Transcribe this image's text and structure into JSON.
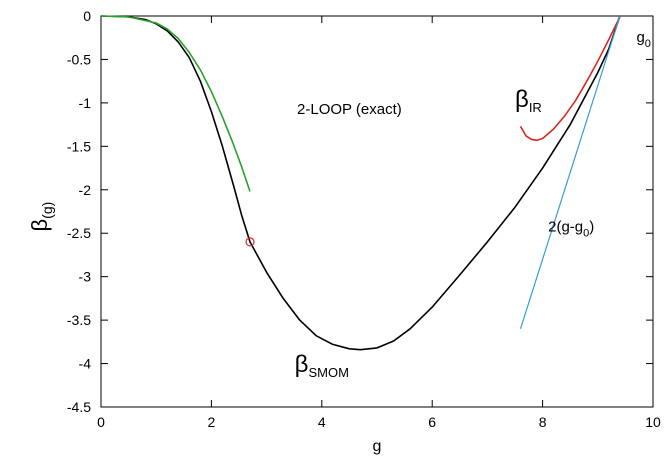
{
  "chart_data": {
    "type": "line",
    "xlabel": "g",
    "ylabel": "β",
    "ylabel_sub": "(g)",
    "xlim": [
      0,
      10
    ],
    "ylim": [
      -4.5,
      0
    ],
    "xticks": [
      0,
      2,
      4,
      6,
      8,
      10
    ],
    "yticks": [
      0,
      -0.5,
      -1,
      -1.5,
      -2,
      -2.5,
      -3,
      -3.5,
      -4,
      -4.5
    ],
    "grid": false,
    "series": [
      {
        "key": "smom",
        "color": "#000000",
        "points": [
          [
            0,
            0
          ],
          [
            0.5,
            -0.01
          ],
          [
            0.8,
            -0.04
          ],
          [
            1.0,
            -0.09
          ],
          [
            1.2,
            -0.17
          ],
          [
            1.4,
            -0.3
          ],
          [
            1.6,
            -0.48
          ],
          [
            1.8,
            -0.75
          ],
          [
            2.0,
            -1.1
          ],
          [
            2.2,
            -1.5
          ],
          [
            2.4,
            -1.95
          ],
          [
            2.55,
            -2.3
          ],
          [
            2.7,
            -2.6
          ],
          [
            3.0,
            -2.95
          ],
          [
            3.3,
            -3.25
          ],
          [
            3.6,
            -3.5
          ],
          [
            3.9,
            -3.68
          ],
          [
            4.2,
            -3.78
          ],
          [
            4.5,
            -3.83
          ],
          [
            4.7,
            -3.84
          ],
          [
            5.0,
            -3.82
          ],
          [
            5.3,
            -3.74
          ],
          [
            5.6,
            -3.6
          ],
          [
            6.0,
            -3.35
          ],
          [
            6.5,
            -2.98
          ],
          [
            7.0,
            -2.6
          ],
          [
            7.5,
            -2.2
          ],
          [
            8.0,
            -1.75
          ],
          [
            8.5,
            -1.25
          ],
          [
            9.0,
            -0.65
          ],
          [
            9.2,
            -0.38
          ],
          [
            9.4,
            0
          ]
        ]
      },
      {
        "key": "two_loop",
        "color": "#2ca02c",
        "points": [
          [
            0,
            0
          ],
          [
            0.5,
            -0.01
          ],
          [
            1.0,
            -0.08
          ],
          [
            1.2,
            -0.15
          ],
          [
            1.4,
            -0.26
          ],
          [
            1.6,
            -0.42
          ],
          [
            1.8,
            -0.62
          ],
          [
            2.0,
            -0.87
          ],
          [
            2.2,
            -1.16
          ],
          [
            2.4,
            -1.48
          ],
          [
            2.55,
            -1.74
          ],
          [
            2.7,
            -2.02
          ]
        ]
      },
      {
        "key": "ir",
        "color": "#d62728",
        "points": [
          [
            7.6,
            -1.27
          ],
          [
            7.7,
            -1.38
          ],
          [
            7.8,
            -1.42
          ],
          [
            7.9,
            -1.43
          ],
          [
            8.0,
            -1.41
          ],
          [
            8.2,
            -1.3
          ],
          [
            8.4,
            -1.15
          ],
          [
            8.6,
            -0.97
          ],
          [
            8.8,
            -0.75
          ],
          [
            9.0,
            -0.52
          ],
          [
            9.2,
            -0.27
          ],
          [
            9.4,
            -0.01
          ]
        ]
      },
      {
        "key": "linear",
        "color": "#3a9bd6",
        "points": [
          [
            7.6,
            -3.6
          ],
          [
            9.4,
            0
          ]
        ]
      }
    ],
    "marker": {
      "x": 2.7,
      "y": -2.6,
      "color": "#d62728"
    },
    "annotations": {
      "two_loop": {
        "text": "2-LOOP (exact)",
        "x": 4.5,
        "y": -1.13
      },
      "beta_ir": {
        "base": "β",
        "sub": "IR",
        "x": 7.5,
        "y": -1.05
      },
      "linear": {
        "text": "2(g-g",
        "sub": "0",
        "tail": ")",
        "x": 8.1,
        "y": -2.48
      },
      "g0": {
        "base": "g",
        "sub": "0",
        "x": 9.7,
        "y": -0.3
      },
      "beta_smom": {
        "base": "β",
        "sub": "SMOM",
        "x": 4.0,
        "y": -4.1
      }
    }
  }
}
